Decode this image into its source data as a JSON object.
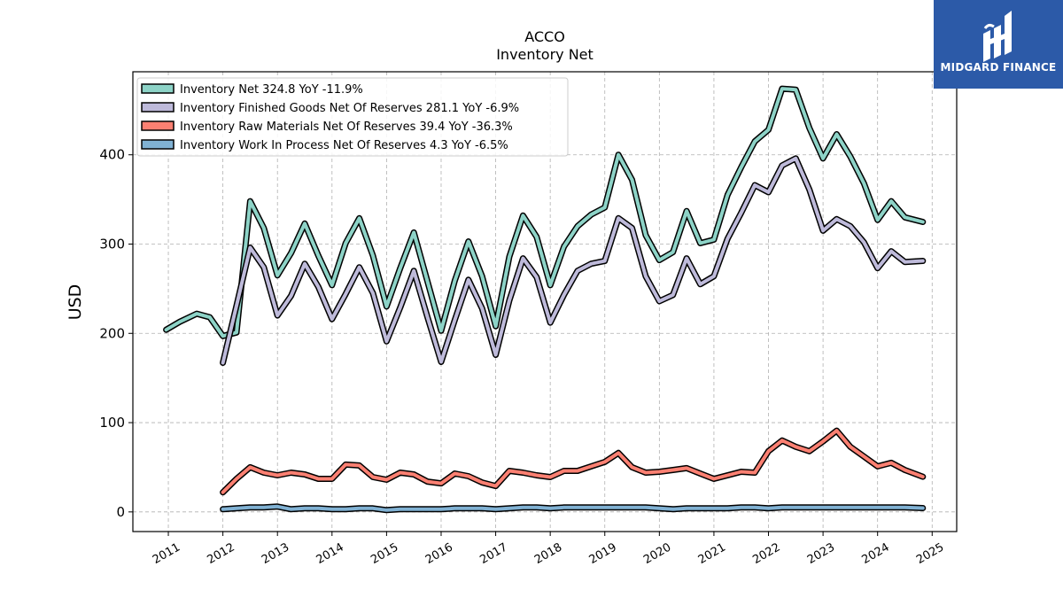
{
  "brand": {
    "name": "MIDGARD FINANCE",
    "color": "#2c5aa8",
    "icon": "midgard-logo-icon"
  },
  "chart_data": {
    "type": "line",
    "title": "ACCO",
    "subtitle": "Inventory Net",
    "ylabel": "USD",
    "xlabel": "",
    "ylim": [
      -22,
      493
    ],
    "xlim": [
      2010.35,
      2025.45
    ],
    "yticks": [
      0,
      100,
      200,
      300,
      400
    ],
    "xticks": [
      "2011",
      "2012",
      "2013",
      "2014",
      "2015",
      "2016",
      "2017",
      "2018",
      "2019",
      "2020",
      "2021",
      "2022",
      "2023",
      "2024",
      "2025"
    ],
    "grid": true,
    "legend_position": "top-left",
    "series": [
      {
        "name": "Inventory Net",
        "legend": "Inventory Net  324.8 YoY -11.9%",
        "color": "#8dd3c7",
        "x": [
          2010.96,
          2011.21,
          2011.52,
          2011.76,
          2012.0,
          2012.25,
          2012.5,
          2012.75,
          2013.0,
          2013.25,
          2013.5,
          2013.75,
          2014.0,
          2014.25,
          2014.5,
          2014.75,
          2015.0,
          2015.25,
          2015.5,
          2015.75,
          2016.0,
          2016.25,
          2016.5,
          2016.75,
          2017.0,
          2017.25,
          2017.5,
          2017.75,
          2018.0,
          2018.25,
          2018.5,
          2018.75,
          2019.0,
          2019.25,
          2019.5,
          2019.75,
          2020.0,
          2020.25,
          2020.5,
          2020.75,
          2021.0,
          2021.25,
          2021.5,
          2021.75,
          2022.0,
          2022.25,
          2022.5,
          2022.75,
          2023.0,
          2023.25,
          2023.5,
          2023.75,
          2024.0,
          2024.25,
          2024.5,
          2024.83
        ],
        "values": [
          204,
          213,
          222,
          218,
          197,
          201,
          348,
          318,
          265,
          290,
          323,
          287,
          254,
          301,
          329,
          287,
          230,
          273,
          313,
          258,
          203,
          259,
          303,
          264,
          208,
          286,
          332,
          308,
          254,
          297,
          320,
          333,
          341,
          400,
          372,
          310,
          282,
          291,
          337,
          301,
          305,
          355,
          386,
          415,
          428,
          474,
          473,
          430,
          396,
          423,
          398,
          368,
          327,
          348,
          330,
          324.8
        ]
      },
      {
        "name": "Inventory Finished Goods Net Of Reserves",
        "legend": "Inventory Finished Goods Net Of Reserves  281.1 YoY -6.9%",
        "color": "#bebada",
        "x": [
          2012.0,
          2012.25,
          2012.5,
          2012.75,
          2013.0,
          2013.25,
          2013.5,
          2013.75,
          2014.0,
          2014.25,
          2014.5,
          2014.75,
          2015.0,
          2015.25,
          2015.5,
          2015.75,
          2016.0,
          2016.25,
          2016.5,
          2016.75,
          2017.0,
          2017.25,
          2017.5,
          2017.75,
          2018.0,
          2018.25,
          2018.5,
          2018.75,
          2019.0,
          2019.25,
          2019.5,
          2019.75,
          2020.0,
          2020.25,
          2020.5,
          2020.75,
          2021.0,
          2021.25,
          2021.5,
          2021.75,
          2022.0,
          2022.25,
          2022.5,
          2022.75,
          2023.0,
          2023.25,
          2023.5,
          2023.75,
          2024.0,
          2024.25,
          2024.5,
          2024.83
        ],
        "values": [
          167,
          231,
          296,
          274,
          220,
          242,
          278,
          252,
          216,
          244,
          274,
          245,
          191,
          229,
          270,
          218,
          168,
          215,
          260,
          228,
          176,
          237,
          284,
          263,
          212,
          243,
          270,
          278,
          281,
          329,
          318,
          264,
          236,
          243,
          284,
          255,
          264,
          306,
          335,
          366,
          358,
          388,
          396,
          361,
          315,
          328,
          320,
          302,
          273,
          292,
          280,
          281.1
        ]
      },
      {
        "name": "Inventory Raw Materials Net Of Reserves",
        "legend": "Inventory Raw Materials Net Of Reserves  39.4 YoY -36.3%",
        "color": "#fb8072",
        "x": [
          2012.0,
          2012.25,
          2012.5,
          2012.75,
          2013.0,
          2013.25,
          2013.5,
          2013.75,
          2014.0,
          2014.25,
          2014.5,
          2014.75,
          2015.0,
          2015.25,
          2015.5,
          2015.75,
          2016.0,
          2016.25,
          2016.5,
          2016.75,
          2017.0,
          2017.25,
          2017.5,
          2017.75,
          2018.0,
          2018.25,
          2018.5,
          2018.75,
          2019.0,
          2019.25,
          2019.5,
          2019.75,
          2020.0,
          2020.25,
          2020.5,
          2020.75,
          2021.0,
          2021.25,
          2021.5,
          2021.75,
          2022.0,
          2022.25,
          2022.5,
          2022.75,
          2023.0,
          2023.25,
          2023.5,
          2023.75,
          2024.0,
          2024.25,
          2024.5,
          2024.83
        ],
        "values": [
          22,
          37,
          50,
          44,
          41,
          44,
          42,
          37,
          37,
          53,
          52,
          39,
          36,
          44,
          42,
          34,
          32,
          43,
          40,
          33,
          29,
          46,
          44,
          41,
          39,
          46,
          46,
          51,
          56,
          66,
          50,
          44,
          45,
          47,
          49,
          43,
          37,
          41,
          45,
          44,
          68,
          80,
          73,
          68,
          79,
          91,
          73,
          62,
          51,
          55,
          47,
          39.4
        ]
      },
      {
        "name": "Inventory Work In Process Net Of Reserves",
        "legend": "Inventory Work In Process Net Of Reserves  4.3 YoY -6.5%",
        "color": "#80b1d3",
        "x": [
          2012.0,
          2012.25,
          2012.5,
          2012.75,
          2013.0,
          2013.25,
          2013.5,
          2013.75,
          2014.0,
          2014.25,
          2014.5,
          2014.75,
          2015.0,
          2015.25,
          2015.5,
          2015.75,
          2016.0,
          2016.25,
          2016.5,
          2016.75,
          2017.0,
          2017.25,
          2017.5,
          2017.75,
          2018.0,
          2018.25,
          2018.5,
          2018.75,
          2019.0,
          2019.25,
          2019.5,
          2019.75,
          2020.0,
          2020.25,
          2020.5,
          2020.75,
          2021.0,
          2021.25,
          2021.5,
          2021.75,
          2022.0,
          2022.25,
          2022.5,
          2022.75,
          2023.0,
          2023.25,
          2023.5,
          2023.75,
          2024.0,
          2024.25,
          2024.5,
          2024.83
        ],
        "values": [
          3,
          4,
          5,
          5,
          6,
          3,
          4,
          4,
          3,
          3,
          4,
          4,
          2,
          3,
          3,
          3,
          3,
          4,
          4,
          4,
          3,
          4,
          5,
          5,
          4,
          5,
          5,
          5,
          5,
          5,
          5,
          5,
          4,
          3,
          4,
          4,
          4,
          4,
          5,
          5,
          4,
          5,
          5,
          5,
          5,
          5,
          5,
          5,
          5,
          5,
          5,
          4.3
        ]
      }
    ]
  }
}
